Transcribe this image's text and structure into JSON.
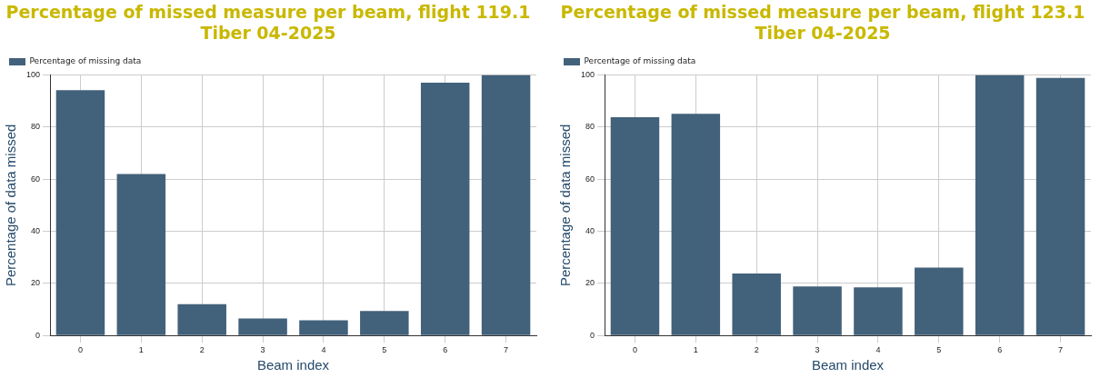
{
  "chart_data": [
    {
      "type": "bar",
      "title": "Percentage of missed measure per beam, flight 119.1\nTiber 04-2025",
      "xlabel": "Beam index",
      "ylabel": "Percentage of data missed",
      "categories": [
        "0",
        "1",
        "2",
        "3",
        "4",
        "5",
        "6",
        "7"
      ],
      "series": [
        {
          "name": "Percentage of missing data",
          "color": "#42617a",
          "values": [
            94.2,
            62,
            12,
            6.5,
            5.8,
            9.4,
            97.1,
            100
          ]
        }
      ],
      "ylim": [
        0,
        100
      ],
      "yticks": [
        0,
        20,
        40,
        60,
        80,
        100
      ],
      "grid": true,
      "legend": "top left"
    },
    {
      "type": "bar",
      "title": "Percentage of missed measure per beam, flight 123.1\nTiber 04-2025",
      "xlabel": "Beam index",
      "ylabel": "Percentage of data missed",
      "categories": [
        "0",
        "1",
        "2",
        "3",
        "4",
        "5",
        "6",
        "7"
      ],
      "series": [
        {
          "name": "Percentage of missing data",
          "color": "#42617a",
          "values": [
            83.8,
            85.1,
            23.8,
            18.8,
            18.5,
            26.1,
            100,
            98.9
          ]
        }
      ],
      "ylim": [
        0,
        100
      ],
      "yticks": [
        0,
        20,
        40,
        60,
        80,
        100
      ],
      "grid": true,
      "legend": "top left"
    }
  ]
}
